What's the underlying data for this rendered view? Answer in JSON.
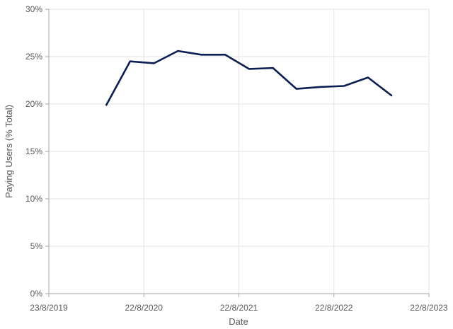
{
  "chart_data": {
    "type": "line",
    "title": "",
    "xlabel": "Date",
    "ylabel": "Paying Users (% Total)",
    "x_ticks": [
      "23/8/2019",
      "22/8/2020",
      "22/8/2021",
      "22/8/2022",
      "22/8/2023"
    ],
    "xlim": [
      "23/8/2019",
      "22/8/2023"
    ],
    "y_ticks": [
      "0%",
      "5%",
      "10%",
      "15%",
      "20%",
      "25%",
      "30%"
    ],
    "ylim": [
      0,
      30
    ],
    "grid": true,
    "series": [
      {
        "color": "#0d1f52",
        "points": [
          {
            "x": "31/3/2020",
            "y": 19.9
          },
          {
            "x": "30/6/2020",
            "y": 24.5
          },
          {
            "x": "30/9/2020",
            "y": 24.3
          },
          {
            "x": "31/12/2020",
            "y": 25.6
          },
          {
            "x": "31/3/2021",
            "y": 25.2
          },
          {
            "x": "30/6/2021",
            "y": 25.2
          },
          {
            "x": "30/9/2021",
            "y": 23.7
          },
          {
            "x": "31/12/2021",
            "y": 23.8
          },
          {
            "x": "31/3/2022",
            "y": 21.6
          },
          {
            "x": "30/6/2022",
            "y": 21.8
          },
          {
            "x": "30/9/2022",
            "y": 21.9
          },
          {
            "x": "31/12/2022",
            "y": 22.8
          },
          {
            "x": "31/3/2023",
            "y": 20.9
          }
        ]
      }
    ]
  }
}
